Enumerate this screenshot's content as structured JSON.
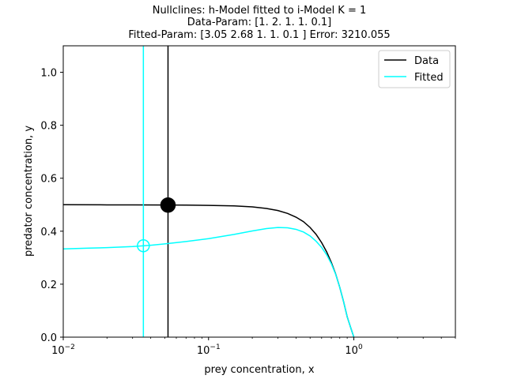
{
  "chart_data": {
    "type": "line",
    "title_lines": [
      "Nullclines: h-Model fitted to i-Model K = 1",
      "Data-Param: [1.  2.  1.  1.  0.1]",
      "Fitted-Param: [3.05 2.68 1.   1.   0.1 ] Error: 3210.055"
    ],
    "xlabel": "prey concentration, x",
    "ylabel": "predator concentration, y",
    "xscale": "log",
    "xlim": [
      0.01,
      5
    ],
    "ylim": [
      0,
      1.1
    ],
    "x_ticks": [
      {
        "value": 0.01,
        "base": "10",
        "exp": "−2"
      },
      {
        "value": 0.1,
        "base": "10",
        "exp": "−1"
      },
      {
        "value": 1,
        "base": "10",
        "exp": "0"
      }
    ],
    "y_ticks": [
      {
        "value": 0.0,
        "label": "0.0"
      },
      {
        "value": 0.2,
        "label": "0.2"
      },
      {
        "value": 0.4,
        "label": "0.4"
      },
      {
        "value": 0.6,
        "label": "0.6"
      },
      {
        "value": 0.8,
        "label": "0.8"
      },
      {
        "value": 1.0,
        "label": "1.0"
      }
    ],
    "legend_position": "top-right",
    "series": [
      {
        "name": "Data",
        "color": "#000000",
        "curve": [
          [
            0.01,
            0.5
          ],
          [
            0.02,
            0.4995
          ],
          [
            0.03,
            0.4993
          ],
          [
            0.05,
            0.499
          ],
          [
            0.07,
            0.4985
          ],
          [
            0.1,
            0.4975
          ],
          [
            0.15,
            0.4955
          ],
          [
            0.2,
            0.492
          ],
          [
            0.25,
            0.486
          ],
          [
            0.3,
            0.478
          ],
          [
            0.35,
            0.467
          ],
          [
            0.4,
            0.453
          ],
          [
            0.45,
            0.436
          ],
          [
            0.5,
            0.414
          ],
          [
            0.55,
            0.388
          ],
          [
            0.6,
            0.357
          ],
          [
            0.65,
            0.322
          ],
          [
            0.7,
            0.282
          ],
          [
            0.75,
            0.238
          ],
          [
            0.8,
            0.188
          ],
          [
            0.85,
            0.134
          ],
          [
            0.9,
            0.077
          ],
          [
            0.95,
            0.037
          ],
          [
            1.0,
            0.0
          ]
        ],
        "vertical_nullcline_x": 0.0526,
        "equilibrium": {
          "x": 0.0526,
          "y": 0.4987,
          "marker": "filled"
        }
      },
      {
        "name": "Fitted",
        "color": "#00ffff",
        "curve": [
          [
            0.01,
            0.333
          ],
          [
            0.015,
            0.336
          ],
          [
            0.02,
            0.338
          ],
          [
            0.03,
            0.342
          ],
          [
            0.04,
            0.347
          ],
          [
            0.05,
            0.352
          ],
          [
            0.07,
            0.361
          ],
          [
            0.1,
            0.372
          ],
          [
            0.15,
            0.388
          ],
          [
            0.2,
            0.401
          ],
          [
            0.25,
            0.41
          ],
          [
            0.3,
            0.414
          ],
          [
            0.35,
            0.413
          ],
          [
            0.4,
            0.407
          ],
          [
            0.45,
            0.397
          ],
          [
            0.5,
            0.382
          ],
          [
            0.55,
            0.362
          ],
          [
            0.6,
            0.339
          ],
          [
            0.65,
            0.311
          ],
          [
            0.7,
            0.277
          ],
          [
            0.75,
            0.237
          ],
          [
            0.8,
            0.188
          ],
          [
            0.85,
            0.134
          ],
          [
            0.9,
            0.077
          ],
          [
            0.95,
            0.037
          ],
          [
            1.0,
            0.0
          ]
        ],
        "vertical_nullcline_x": 0.0356,
        "equilibrium": {
          "x": 0.0356,
          "y": 0.345,
          "marker": "open"
        }
      }
    ]
  }
}
